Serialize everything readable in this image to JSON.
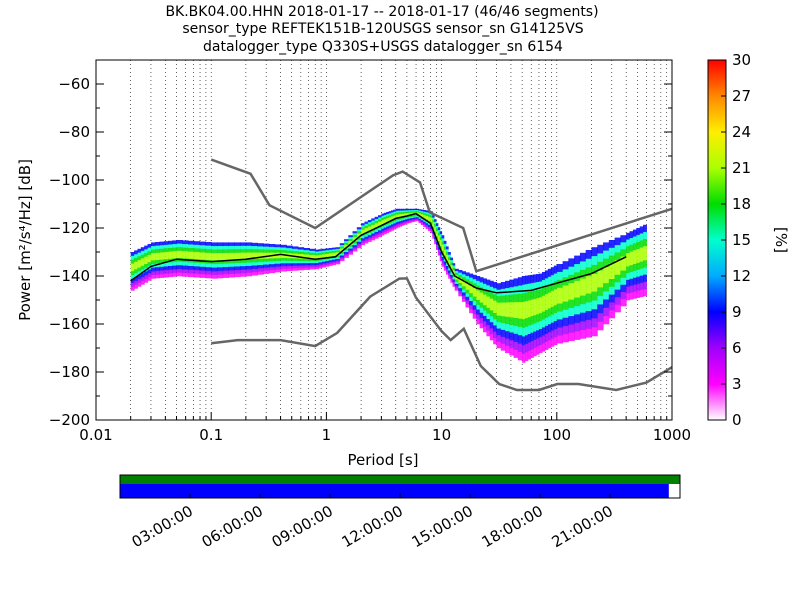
{
  "chart_data": {
    "type": "heatmap",
    "title_lines": [
      "BK.BK04.00.HHN   2018-01-17 -- 2018-01-17  (46/46 segments)",
      "sensor_type REFTEK151B-120USGS sensor_sn G14125VS",
      "datalogger_type Q330S+USGS datalogger_sn 6154"
    ],
    "xlabel": "Period [s]",
    "ylabel": "Power [m²/s⁴/Hz] [dB]",
    "x_scale": "log",
    "xlim": [
      0.01,
      1000
    ],
    "ylim": [
      -200,
      -50
    ],
    "x_ticks": [
      {
        "value": 0.01,
        "label": "0.01"
      },
      {
        "value": 0.1,
        "label": "0.1"
      },
      {
        "value": 1,
        "label": "1"
      },
      {
        "value": 10,
        "label": "10"
      },
      {
        "value": 100,
        "label": "100"
      },
      {
        "value": 1000,
        "label": "1000"
      }
    ],
    "y_ticks": [
      {
        "value": -60,
        "label": "−60"
      },
      {
        "value": -80,
        "label": "−80"
      },
      {
        "value": -100,
        "label": "−100"
      },
      {
        "value": -120,
        "label": "−120"
      },
      {
        "value": -140,
        "label": "−140"
      },
      {
        "value": -160,
        "label": "−160"
      },
      {
        "value": -180,
        "label": "−180"
      },
      {
        "value": -200,
        "label": "−200"
      }
    ],
    "grid": "dotted vertical",
    "colorbar": {
      "label": "[%]",
      "range": [
        0,
        30
      ],
      "ticks": [
        "0",
        "3",
        "6",
        "9",
        "12",
        "15",
        "18",
        "21",
        "24",
        "27",
        "30"
      ],
      "colormap": "pqlx"
    },
    "noise_models": [
      {
        "name": "high-noise-model",
        "points": [
          [
            0.1,
            -91.5
          ],
          [
            0.22,
            -97.4
          ],
          [
            0.32,
            -110.5
          ],
          [
            0.8,
            -120
          ],
          [
            3.8,
            -98
          ],
          [
            4.6,
            -96.5
          ],
          [
            6.5,
            -101
          ],
          [
            7.9,
            -113.5
          ],
          [
            15.4,
            -120
          ],
          [
            20,
            -138
          ],
          [
            1000,
            -112
          ]
        ]
      },
      {
        "name": "low-noise-model",
        "points": [
          [
            0.1,
            -168
          ],
          [
            0.17,
            -166.7
          ],
          [
            0.4,
            -166.7
          ],
          [
            0.8,
            -169.2
          ],
          [
            1.24,
            -163.7
          ],
          [
            2.4,
            -148.6
          ],
          [
            4.3,
            -141.1
          ],
          [
            5,
            -141
          ],
          [
            6,
            -149
          ],
          [
            10,
            -163
          ],
          [
            12,
            -166.7
          ],
          [
            15.6,
            -162
          ],
          [
            21.9,
            -177.5
          ],
          [
            31.6,
            -185
          ],
          [
            45,
            -187.5
          ],
          [
            70,
            -187.5
          ],
          [
            101,
            -185
          ],
          [
            154,
            -185
          ],
          [
            328,
            -187.5
          ],
          [
            600,
            -184.4
          ],
          [
            1000,
            -178
          ]
        ]
      }
    ],
    "mean_curve": [
      [
        0.02,
        -142
      ],
      [
        0.03,
        -136
      ],
      [
        0.05,
        -133
      ],
      [
        0.1,
        -134
      ],
      [
        0.2,
        -133
      ],
      [
        0.4,
        -131
      ],
      [
        0.8,
        -133
      ],
      [
        1.2,
        -132
      ],
      [
        2,
        -123
      ],
      [
        3,
        -119
      ],
      [
        4,
        -116
      ],
      [
        5,
        -115
      ],
      [
        6,
        -114
      ],
      [
        8,
        -118
      ],
      [
        10,
        -130
      ],
      [
        13,
        -140
      ],
      [
        20,
        -145
      ],
      [
        30,
        -147
      ],
      [
        60,
        -146
      ],
      [
        100,
        -143
      ],
      [
        200,
        -139
      ],
      [
        400,
        -132
      ]
    ],
    "density_cloud": [
      [
        0.02,
        -130,
        -146
      ],
      [
        0.03,
        -126,
        -141
      ],
      [
        0.05,
        -125,
        -140
      ],
      [
        0.1,
        -126,
        -141
      ],
      [
        0.2,
        -126,
        -140
      ],
      [
        0.4,
        -127,
        -138
      ],
      [
        0.8,
        -129,
        -137
      ],
      [
        1.2,
        -128,
        -135
      ],
      [
        2,
        -118,
        -127
      ],
      [
        3,
        -114,
        -123
      ],
      [
        4,
        -112,
        -120
      ],
      [
        5,
        -112,
        -118
      ],
      [
        6,
        -112,
        -117
      ],
      [
        8,
        -113,
        -122
      ],
      [
        10,
        -123,
        -136
      ],
      [
        13,
        -137,
        -146
      ],
      [
        20,
        -140,
        -160
      ],
      [
        30,
        -143,
        -170
      ],
      [
        50,
        -140,
        -176
      ],
      [
        70,
        -139,
        -172
      ],
      [
        100,
        -135,
        -168
      ],
      [
        200,
        -128,
        -165
      ],
      [
        400,
        -122,
        -150
      ],
      [
        600,
        -118,
        -148
      ]
    ],
    "timeline": {
      "tick_labels": [
        "03:00:00",
        "06:00:00",
        "09:00:00",
        "12:00:00",
        "15:00:00",
        "18:00:00",
        "21:00:00"
      ],
      "tick_hours": [
        3,
        6,
        9,
        12,
        15,
        18,
        21
      ],
      "span_hours": 24,
      "coverage_end_fraction": 0.98,
      "colors": {
        "top": "#008000",
        "bottom": "#0000ff"
      }
    }
  }
}
